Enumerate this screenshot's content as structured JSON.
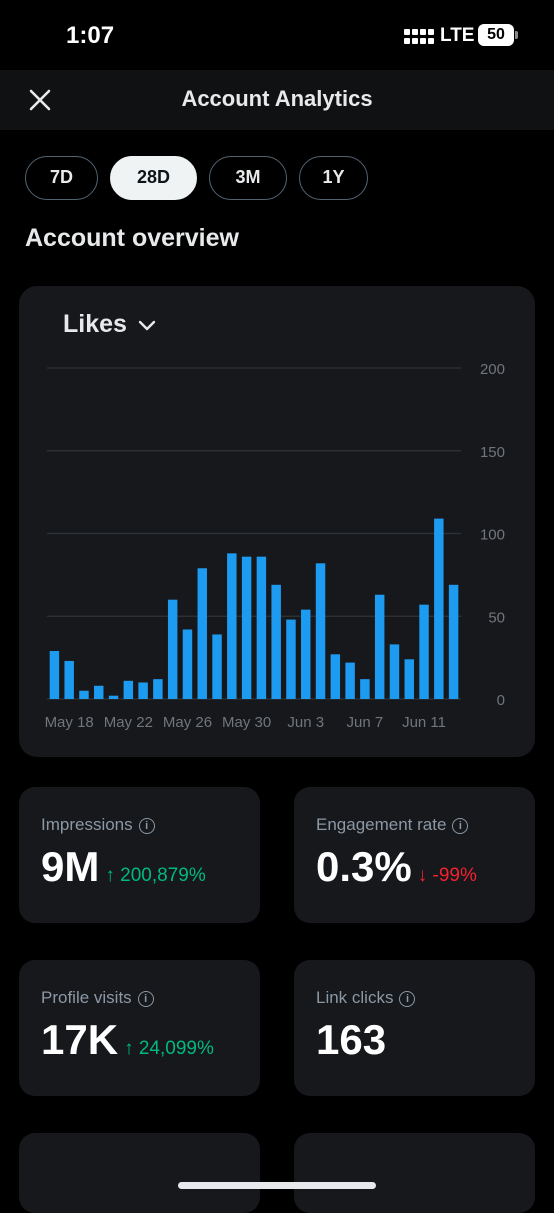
{
  "status_bar": {
    "time": "1:07",
    "network": "LTE",
    "battery": "50"
  },
  "nav": {
    "title": "Account Analytics",
    "close_icon": "close-icon"
  },
  "periods": [
    {
      "label": "7D",
      "active": false
    },
    {
      "label": "28D",
      "active": true
    },
    {
      "label": "3M",
      "active": false
    },
    {
      "label": "1Y",
      "active": false
    }
  ],
  "overview": {
    "title": "Account overview"
  },
  "chart_card": {
    "metric": "Likes",
    "chevron_icon": "chevron-down-icon"
  },
  "chart_data": {
    "type": "bar",
    "title": "Likes",
    "xlabel": "",
    "ylabel": "",
    "ylim": [
      0,
      200
    ],
    "yticks": [
      "200",
      "150",
      "100",
      "50",
      "0"
    ],
    "x_tick_labels": [
      "May 18",
      "May 22",
      "May 26",
      "May 30",
      "Jun 3",
      "Jun 7",
      "Jun 11"
    ],
    "categories": [
      "May 17",
      "May 18",
      "May 19",
      "May 20",
      "May 21",
      "May 22",
      "May 23",
      "May 24",
      "May 25",
      "May 26",
      "May 27",
      "May 28",
      "May 29",
      "May 30",
      "May 31",
      "Jun 1",
      "Jun 2",
      "Jun 3",
      "Jun 4",
      "Jun 5",
      "Jun 6",
      "Jun 7",
      "Jun 8",
      "Jun 9",
      "Jun 10",
      "Jun 11",
      "Jun 12",
      "Jun 13"
    ],
    "values": [
      29,
      23,
      5,
      8,
      2,
      11,
      10,
      12,
      60,
      42,
      79,
      39,
      88,
      86,
      86,
      69,
      48,
      54,
      82,
      27,
      22,
      12,
      63,
      33,
      24,
      57,
      109,
      69
    ],
    "bar_color": "#1d9bf0",
    "grid": true
  },
  "stats": [
    {
      "label": "Impressions",
      "value": "9M",
      "change": "↑ 200,879%",
      "trend": "up"
    },
    {
      "label": "Engagement rate",
      "value": "0.3%",
      "change": "↓ -99%",
      "trend": "down"
    },
    {
      "label": "Profile visits",
      "value": "17K",
      "change": "↑ 24,099%",
      "trend": "up"
    },
    {
      "label": "Link clicks",
      "value": "163",
      "change": "",
      "trend": "none"
    }
  ],
  "colors": {
    "accent": "#1d9bf0",
    "up": "#00ba7c",
    "down": "#f4212e",
    "card": "#16181c"
  }
}
